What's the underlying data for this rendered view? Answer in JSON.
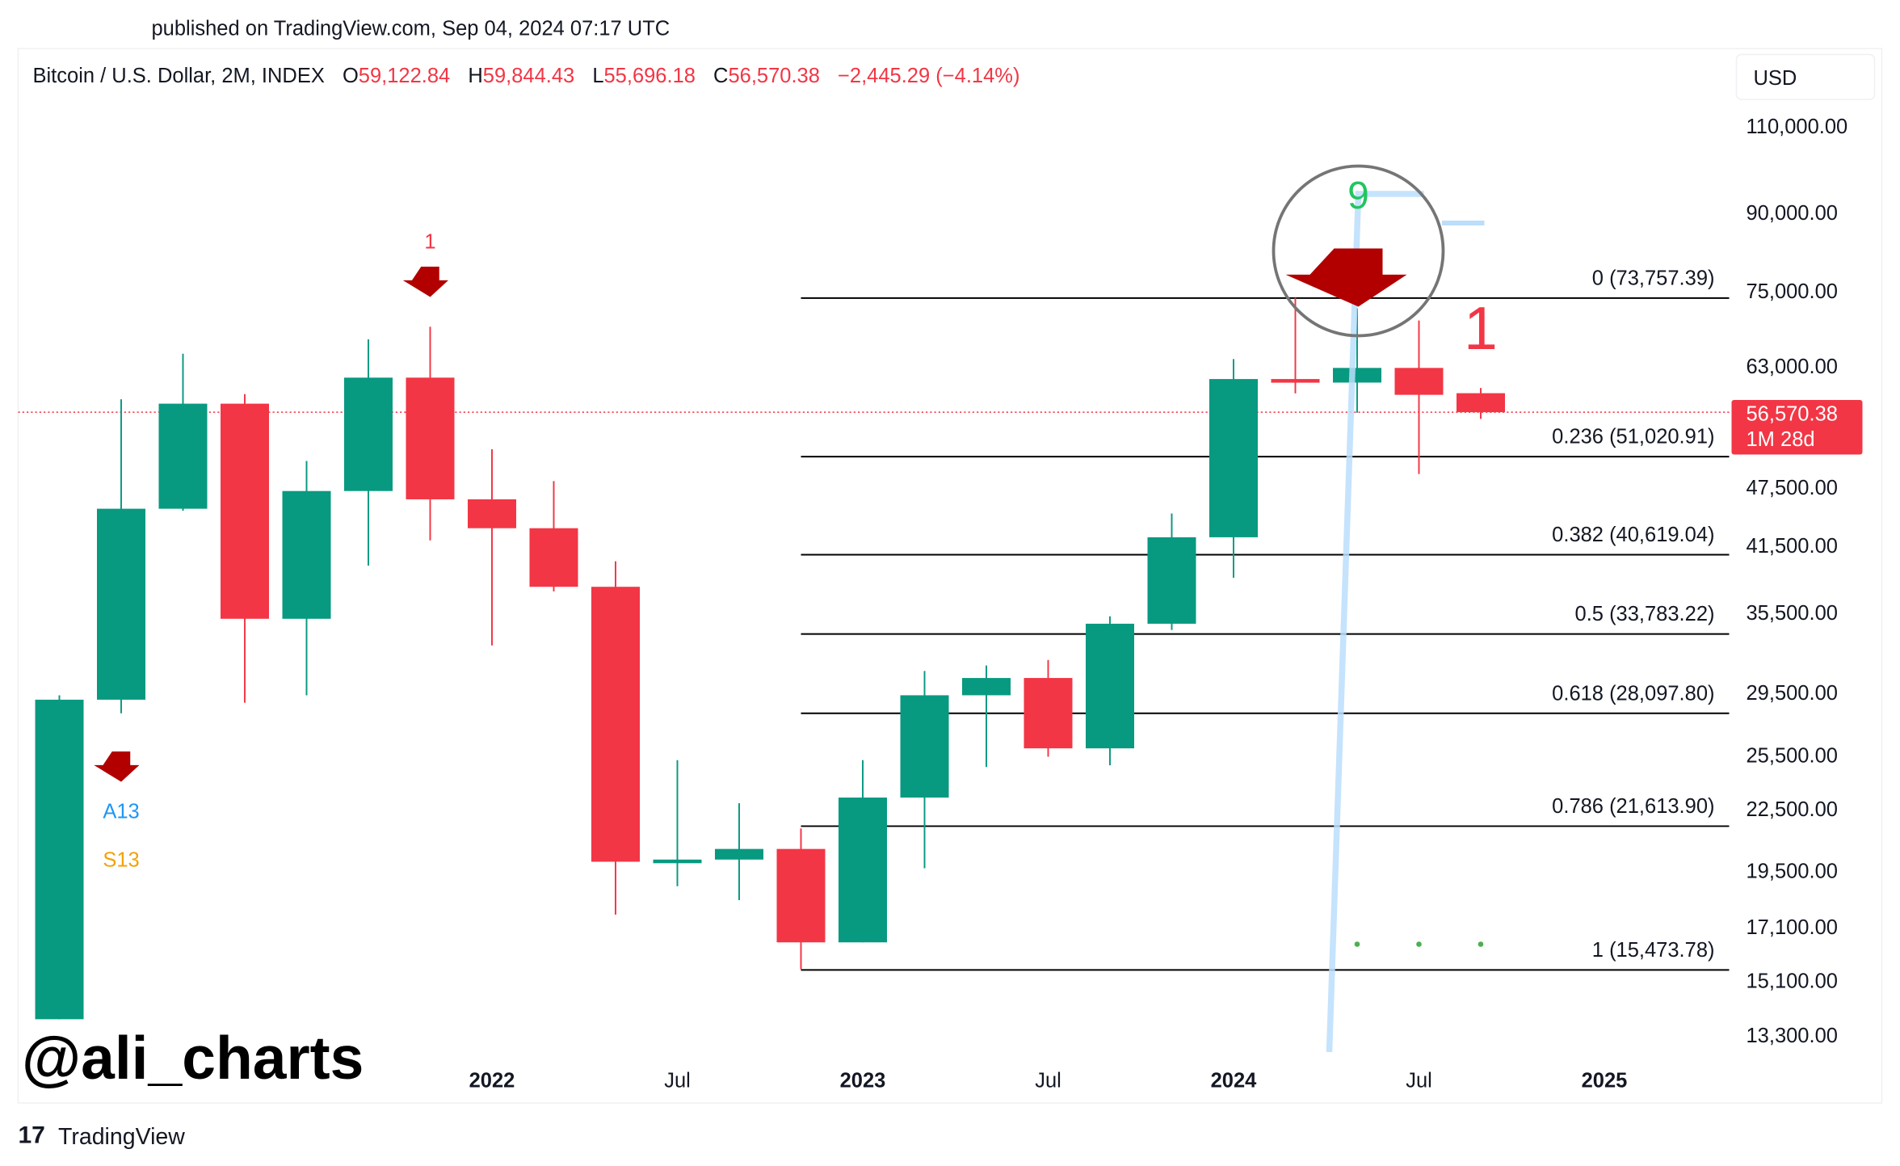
{
  "published": "published on TradingView.com, Sep 04, 2024 07:17 UTC",
  "legend": {
    "symbol": "Bitcoin / U.S. Dollar, 2M, INDEX",
    "o_label": "O",
    "o": "59,122.84",
    "h_label": "H",
    "h": "59,844.43",
    "l_label": "L",
    "l": "55,696.18",
    "c_label": "C",
    "c": "56,570.38",
    "change": "−2,445.29 (−4.14%)"
  },
  "currency": "USD",
  "watermark": "@ali_charts",
  "footer_brand": "TradingView",
  "colors": {
    "up": "#089981",
    "down": "#f23645",
    "signal_arrow": "#b20000",
    "trendline": "#bbdefb",
    "fib": "#000000",
    "count_green": "#22c55e",
    "a13": "#2196f3",
    "s13": "#f0a30a"
  },
  "chart_data": {
    "type": "candlestick",
    "title": "Bitcoin / U.S. Dollar, 2M, INDEX",
    "y_scale": "log",
    "ylim": [
      12500,
      120000
    ],
    "grid": false,
    "y_ticks": [
      "110,000.00",
      "90,000.00",
      "75,000.00",
      "63,000.00",
      "47,500.00",
      "41,500.00",
      "35,500.00",
      "29,500.00",
      "25,500.00",
      "22,500.00",
      "19,500.00",
      "17,100.00",
      "15,100.00",
      "13,300.00"
    ],
    "x_ticks": [
      {
        "date": "2022-01",
        "label": "2022",
        "bold": true
      },
      {
        "date": "2022-07",
        "label": "Jul",
        "bold": false
      },
      {
        "date": "2023-01",
        "label": "2023",
        "bold": true
      },
      {
        "date": "2023-07",
        "label": "Jul",
        "bold": false
      },
      {
        "date": "2024-01",
        "label": "2024",
        "bold": true
      },
      {
        "date": "2024-07",
        "label": "Jul",
        "bold": false
      },
      {
        "date": "2025-01",
        "label": "2025",
        "bold": true
      }
    ],
    "candles": [
      {
        "date": "2020-11",
        "o": 13800,
        "h": 29300,
        "l": 13200,
        "c": 29000
      },
      {
        "date": "2021-01",
        "o": 29000,
        "h": 58300,
        "l": 28100,
        "c": 45200
      },
      {
        "date": "2021-03",
        "o": 45200,
        "h": 64800,
        "l": 45000,
        "c": 57700
      },
      {
        "date": "2021-05",
        "o": 57700,
        "h": 59000,
        "l": 28800,
        "c": 35000
      },
      {
        "date": "2021-07",
        "o": 35000,
        "h": 50500,
        "l": 29300,
        "c": 47100
      },
      {
        "date": "2021-09",
        "o": 47100,
        "h": 67000,
        "l": 39600,
        "c": 61300
      },
      {
        "date": "2021-11",
        "o": 61300,
        "h": 69000,
        "l": 42000,
        "c": 46200
      },
      {
        "date": "2022-01",
        "o": 46200,
        "h": 51900,
        "l": 32900,
        "c": 43200
      },
      {
        "date": "2022-03",
        "o": 43200,
        "h": 48200,
        "l": 37300,
        "c": 37700
      },
      {
        "date": "2022-05",
        "o": 37700,
        "h": 40000,
        "l": 17600,
        "c": 19900
      },
      {
        "date": "2022-07",
        "o": 19900,
        "h": 25200,
        "l": 18800,
        "c": 20000
      },
      {
        "date": "2022-09",
        "o": 20000,
        "h": 22800,
        "l": 18200,
        "c": 20500
      },
      {
        "date": "2022-11",
        "o": 20500,
        "h": 21500,
        "l": 15500,
        "c": 16500
      },
      {
        "date": "2023-01",
        "o": 16500,
        "h": 25200,
        "l": 16500,
        "c": 23100
      },
      {
        "date": "2023-03",
        "o": 23100,
        "h": 31000,
        "l": 19600,
        "c": 29300
      },
      {
        "date": "2023-05",
        "o": 29300,
        "h": 31400,
        "l": 24800,
        "c": 30500
      },
      {
        "date": "2023-07",
        "o": 30500,
        "h": 31800,
        "l": 25400,
        "c": 25900
      },
      {
        "date": "2023-09",
        "o": 25900,
        "h": 35200,
        "l": 24900,
        "c": 34600
      },
      {
        "date": "2023-11",
        "o": 34600,
        "h": 44700,
        "l": 34100,
        "c": 42300
      },
      {
        "date": "2024-01",
        "o": 42300,
        "h": 64000,
        "l": 38500,
        "c": 61100
      },
      {
        "date": "2024-03",
        "o": 61100,
        "h": 73800,
        "l": 59100,
        "c": 60600
      },
      {
        "date": "2024-05",
        "o": 60600,
        "h": 72000,
        "l": 56500,
        "c": 62700
      },
      {
        "date": "2024-07",
        "o": 62700,
        "h": 70000,
        "l": 49000,
        "c": 58900
      },
      {
        "date": "2024-09",
        "o": 59122.84,
        "h": 59844.43,
        "l": 55696.18,
        "c": 56570.38
      }
    ],
    "fibonacci": [
      {
        "label": "0 (73,757.39)",
        "price": 73757.39
      },
      {
        "label": "0.236 (51,020.91)",
        "price": 51020.91
      },
      {
        "label": "0.382 (40,619.04)",
        "price": 40619.04
      },
      {
        "label": "0.5 (33,783.22)",
        "price": 33783.22
      },
      {
        "label": "0.618 (28,097.80)",
        "price": 28097.8
      },
      {
        "label": "0.786 (21,613.90)",
        "price": 21613.9
      },
      {
        "label": "1 (15,473.78)",
        "price": 15473.78
      }
    ],
    "last_price": {
      "value": "56,570.38",
      "countdown": "1M 28d",
      "price": 56570.38
    },
    "annotations": {
      "sell_count_1_early": "1",
      "a13": "A13",
      "s13": "S13",
      "setup_9": "9",
      "sell_count_1_late": "1"
    }
  }
}
